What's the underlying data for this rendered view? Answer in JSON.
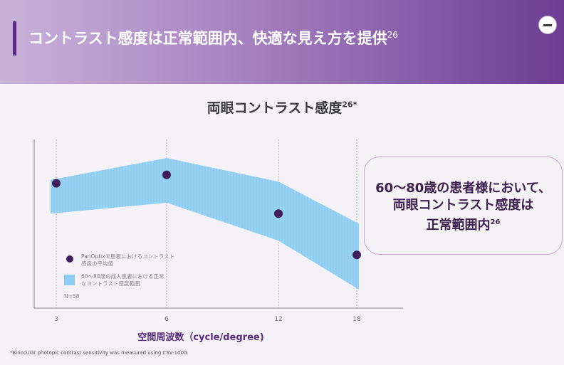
{
  "header": {
    "title": "コントラスト感度は正常範囲内、快適な見え方を提供",
    "title_ref": "26",
    "minus_button": "−"
  },
  "chart_data": {
    "type": "scatter",
    "title": "両眼コントラスト感度",
    "title_ref": "26*",
    "xlabel": "空間周波数（cycle/degree)",
    "x": [
      3,
      6,
      12,
      18
    ],
    "x_tick_labels": [
      "3",
      "6",
      "12",
      "18"
    ],
    "series": [
      {
        "name": "PanOptix®患者におけるコントラスト感度の平均値",
        "type": "scatter",
        "values": [
          1.88,
          1.98,
          1.52,
          1.03
        ]
      },
      {
        "name": "60～80歳の成人患者における正常なコントラスト感度範囲",
        "type": "band",
        "lower": [
          1.52,
          1.65,
          1.2,
          0.62
        ],
        "upper": [
          1.92,
          2.18,
          1.9,
          1.4
        ]
      }
    ],
    "ylim": [
      0.4,
      2.4
    ],
    "legend": {
      "mean_line1": "PanOptix®患者におけるコントラスト",
      "mean_line2": "感度の平均値",
      "range_line1": "60～80歳の成人患者における正常",
      "range_line2": "なコントラスト感度範囲",
      "n": "N=58"
    },
    "grid": "vertical-dashed"
  },
  "callout": {
    "line1": "60～80歳の患者様において、",
    "line2": "両眼コントラスト感度は",
    "line3": "正常範囲内",
    "line3_ref": "26"
  },
  "footnote": "*Binocular photopic contrast sensitivity was measured using CSV-1000.",
  "colors": {
    "band": "#8ecdf2",
    "point": "#3f1d5b",
    "accent": "#5a2d82"
  }
}
